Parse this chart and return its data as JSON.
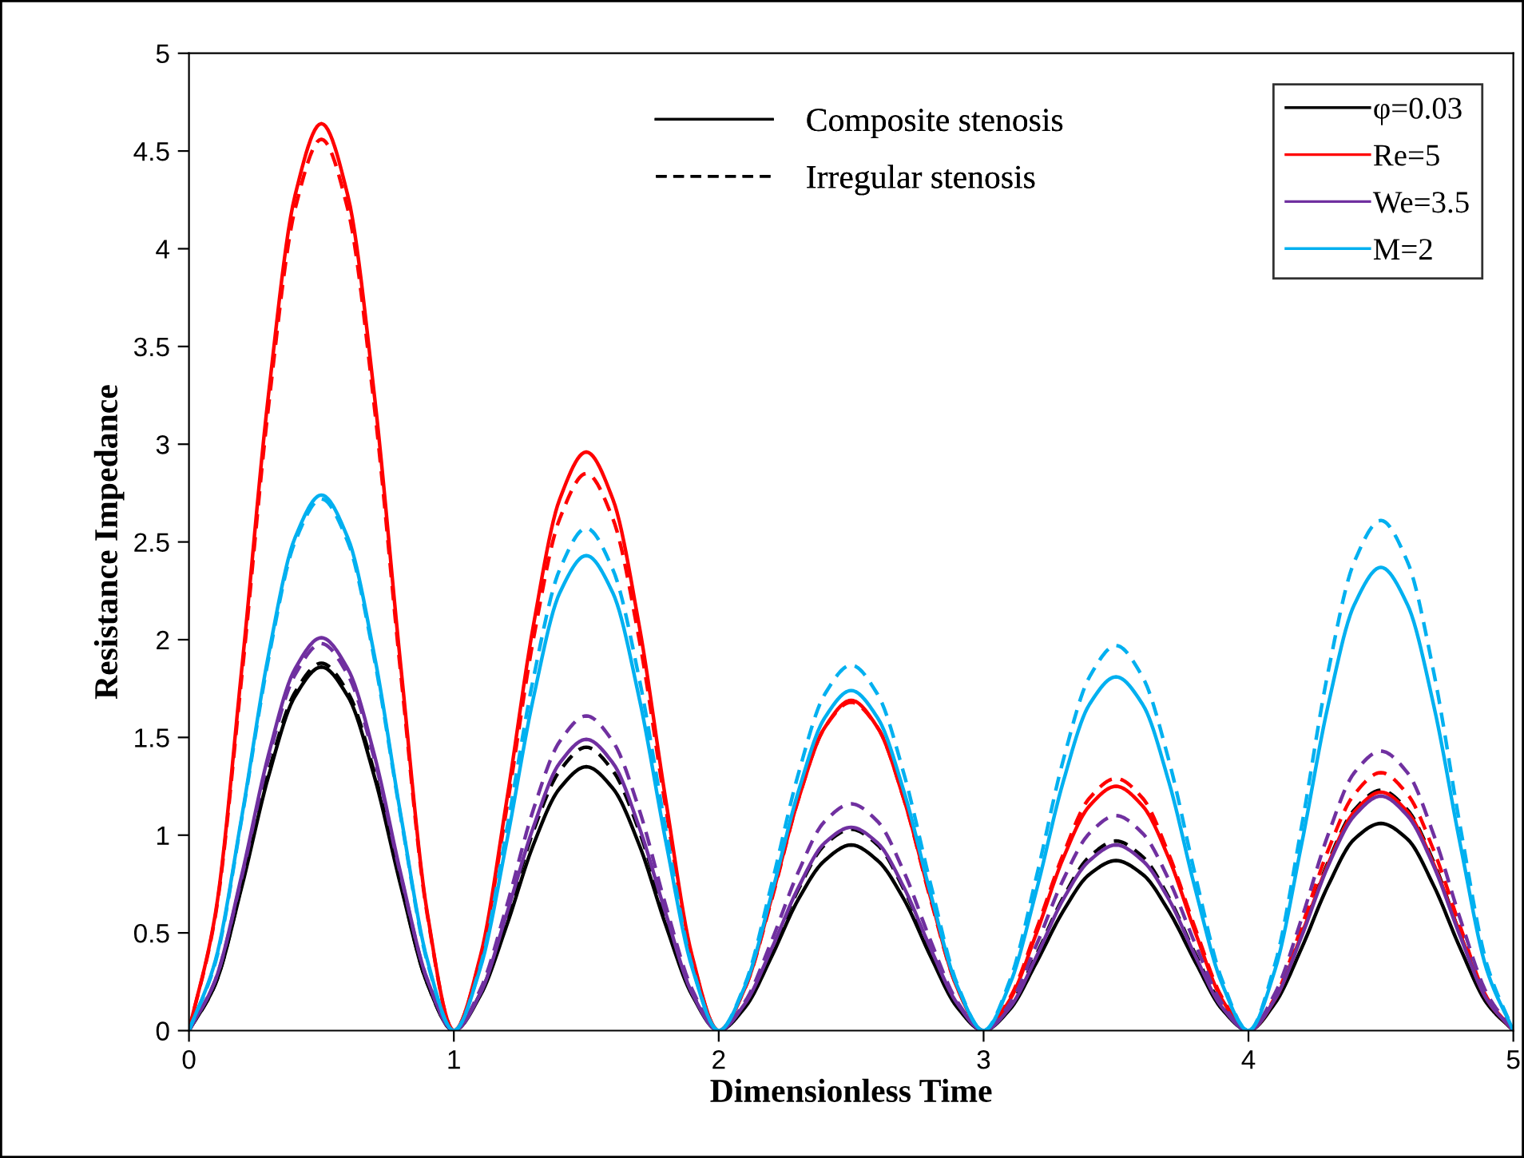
{
  "chart_data": {
    "type": "line",
    "xlabel": "Dimensionless Time",
    "ylabel": "Resistance Impedance",
    "annotations": [
      "Composite stenosis",
      "Irregular stenosis"
    ],
    "x": [
      0,
      0.1,
      0.2,
      0.3,
      0.4,
      0.5,
      0.6,
      0.7,
      0.8,
      0.9,
      1,
      1.1,
      1.2,
      1.3,
      1.4,
      1.5,
      1.6,
      1.7,
      1.8,
      1.9,
      2,
      2.1,
      2.2,
      2.3,
      2.4,
      2.5,
      2.6,
      2.7,
      2.8,
      2.9,
      3,
      3.1,
      3.2,
      3.3,
      3.4,
      3.5,
      3.6,
      3.7,
      3.8,
      3.9,
      4,
      4.1,
      4.2,
      4.3,
      4.4,
      4.5,
      4.6,
      4.7,
      4.8,
      4.9,
      5
    ],
    "series": [
      {
        "name": "φ=0.03",
        "color": "#000000",
        "line_style": "solid",
        "values": [
          0,
          0.24,
          0.74,
          1.3,
          1.71,
          1.86,
          1.71,
          1.3,
          0.74,
          0.24,
          0,
          0.18,
          0.54,
          0.95,
          1.24,
          1.35,
          1.24,
          0.95,
          0.54,
          0.18,
          0,
          0.12,
          0.38,
          0.67,
          0.87,
          0.95,
          0.87,
          0.67,
          0.38,
          0.12,
          0,
          0.11,
          0.35,
          0.61,
          0.8,
          0.87,
          0.8,
          0.61,
          0.35,
          0.11,
          0,
          0.14,
          0.42,
          0.74,
          0.98,
          1.06,
          0.98,
          0.74,
          0.42,
          0.14,
          0
        ]
      },
      {
        "color": "#000000",
        "line_style": "dashed",
        "values": [
          0,
          0.24,
          0.75,
          1.32,
          1.73,
          1.88,
          1.73,
          1.32,
          0.75,
          0.24,
          0,
          0.19,
          0.58,
          1.02,
          1.33,
          1.45,
          1.33,
          1.02,
          0.58,
          0.19,
          0,
          0.13,
          0.41,
          0.72,
          0.95,
          1.03,
          0.95,
          0.72,
          0.41,
          0.13,
          0,
          0.13,
          0.39,
          0.68,
          0.89,
          0.97,
          0.89,
          0.68,
          0.39,
          0.13,
          0,
          0.16,
          0.49,
          0.86,
          1.13,
          1.23,
          1.13,
          0.86,
          0.49,
          0.16,
          0
        ]
      },
      {
        "name": "Re=5",
        "color": "#ff0000",
        "line_style": "solid",
        "values": [
          0,
          0.6,
          1.86,
          3.25,
          4.27,
          4.64,
          4.27,
          3.25,
          1.86,
          0.6,
          0,
          0.38,
          1.18,
          2.07,
          2.72,
          2.96,
          2.72,
          2.07,
          1.18,
          0.38,
          0,
          0.22,
          0.68,
          1.18,
          1.55,
          1.69,
          1.55,
          1.18,
          0.68,
          0.22,
          0,
          0.16,
          0.5,
          0.88,
          1.15,
          1.25,
          1.15,
          0.88,
          0.5,
          0.16,
          0,
          0.16,
          0.49,
          0.85,
          1.12,
          1.22,
          1.12,
          0.85,
          0.49,
          0.16,
          0
        ]
      },
      {
        "color": "#ff0000",
        "line_style": "dashed",
        "values": [
          0,
          0.59,
          1.82,
          3.19,
          4.2,
          4.56,
          4.2,
          3.19,
          1.82,
          0.59,
          0,
          0.37,
          1.14,
          2.0,
          2.62,
          2.85,
          2.62,
          2.0,
          1.14,
          0.37,
          0,
          0.22,
          0.67,
          1.18,
          1.55,
          1.68,
          1.55,
          1.18,
          0.67,
          0.22,
          0,
          0.17,
          0.52,
          0.9,
          1.19,
          1.29,
          1.19,
          0.9,
          0.52,
          0.17,
          0,
          0.17,
          0.53,
          0.92,
          1.21,
          1.32,
          1.21,
          0.92,
          0.53,
          0.17,
          0
        ]
      },
      {
        "name": "We=3.5",
        "color": "#7030a0",
        "line_style": "solid",
        "values": [
          0,
          0.26,
          0.8,
          1.41,
          1.85,
          2.01,
          1.85,
          1.41,
          0.8,
          0.26,
          0,
          0.19,
          0.6,
          1.04,
          1.37,
          1.49,
          1.37,
          1.04,
          0.6,
          0.19,
          0,
          0.14,
          0.42,
          0.73,
          0.96,
          1.04,
          0.96,
          0.73,
          0.42,
          0.14,
          0,
          0.12,
          0.38,
          0.67,
          0.87,
          0.95,
          0.87,
          0.67,
          0.38,
          0.12,
          0,
          0.16,
          0.48,
          0.84,
          1.1,
          1.2,
          1.1,
          0.84,
          0.48,
          0.16,
          0
        ]
      },
      {
        "color": "#7030a0",
        "line_style": "dashed",
        "values": [
          0,
          0.26,
          0.79,
          1.39,
          1.82,
          1.98,
          1.82,
          1.39,
          0.79,
          0.26,
          0,
          0.21,
          0.64,
          1.13,
          1.48,
          1.61,
          1.48,
          1.13,
          0.64,
          0.21,
          0,
          0.15,
          0.46,
          0.81,
          1.07,
          1.16,
          1.07,
          0.81,
          0.46,
          0.15,
          0,
          0.14,
          0.44,
          0.77,
          1.01,
          1.1,
          1.01,
          0.77,
          0.44,
          0.14,
          0,
          0.19,
          0.57,
          1.0,
          1.32,
          1.43,
          1.32,
          1.0,
          0.57,
          0.19,
          0
        ]
      },
      {
        "name": "M=2",
        "color": "#00b0f0",
        "line_style": "solid",
        "values": [
          0,
          0.36,
          1.1,
          1.92,
          2.52,
          2.74,
          2.52,
          1.92,
          1.1,
          0.36,
          0,
          0.32,
          0.97,
          1.7,
          2.24,
          2.43,
          2.24,
          1.7,
          0.97,
          0.32,
          0,
          0.23,
          0.7,
          1.22,
          1.6,
          1.74,
          1.6,
          1.22,
          0.7,
          0.23,
          0,
          0.24,
          0.72,
          1.27,
          1.67,
          1.81,
          1.67,
          1.27,
          0.72,
          0.24,
          0,
          0.31,
          0.95,
          1.66,
          2.18,
          2.37,
          2.18,
          1.66,
          0.95,
          0.31,
          0
        ]
      },
      {
        "color": "#00b0f0",
        "line_style": "dashed",
        "values": [
          0,
          0.35,
          1.09,
          1.9,
          2.5,
          2.72,
          2.5,
          1.9,
          1.09,
          0.35,
          0,
          0.33,
          1.03,
          1.8,
          2.36,
          2.57,
          2.36,
          1.8,
          1.03,
          0.33,
          0,
          0.24,
          0.75,
          1.31,
          1.72,
          1.87,
          1.72,
          1.31,
          0.75,
          0.24,
          0,
          0.26,
          0.79,
          1.38,
          1.81,
          1.97,
          1.81,
          1.38,
          0.79,
          0.26,
          0,
          0.34,
          1.04,
          1.83,
          2.4,
          2.61,
          2.4,
          1.83,
          1.04,
          0.34,
          0
        ]
      }
    ],
    "xlim": [
      0,
      5
    ],
    "xticks": [
      0,
      1,
      2,
      3,
      4,
      5
    ],
    "ylim": [
      0,
      5
    ],
    "yticks": [
      0,
      0.5,
      1,
      1.5,
      2,
      2.5,
      3,
      3.5,
      4,
      4.5,
      5
    ],
    "grid": false,
    "legend": "top right",
    "marker": "none"
  }
}
